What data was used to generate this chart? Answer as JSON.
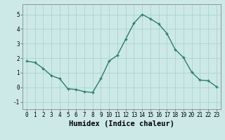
{
  "x": [
    0,
    1,
    2,
    3,
    4,
    5,
    6,
    7,
    8,
    9,
    10,
    11,
    12,
    13,
    14,
    15,
    16,
    17,
    18,
    19,
    20,
    21,
    22,
    23
  ],
  "y": [
    1.8,
    1.7,
    1.3,
    0.8,
    0.6,
    -0.1,
    -0.15,
    -0.3,
    -0.35,
    0.6,
    1.8,
    2.2,
    3.3,
    4.4,
    5.0,
    4.7,
    4.35,
    3.7,
    2.6,
    2.05,
    1.05,
    0.5,
    0.45,
    0.05
  ],
  "line_color": "#2e7d6e",
  "marker": "+",
  "marker_size": 3,
  "bg_color": "#cce9e7",
  "grid_color": "#aad4d0",
  "xlabel": "Humidex (Indice chaleur)",
  "xlim": [
    -0.5,
    23.5
  ],
  "ylim": [
    -1.5,
    5.7
  ],
  "yticks": [
    -1,
    0,
    1,
    2,
    3,
    4,
    5
  ],
  "xticks": [
    0,
    1,
    2,
    3,
    4,
    5,
    6,
    7,
    8,
    9,
    10,
    11,
    12,
    13,
    14,
    15,
    16,
    17,
    18,
    19,
    20,
    21,
    22,
    23
  ],
  "tick_label_size": 5.5,
  "xlabel_size": 7.5,
  "line_width": 1.0
}
